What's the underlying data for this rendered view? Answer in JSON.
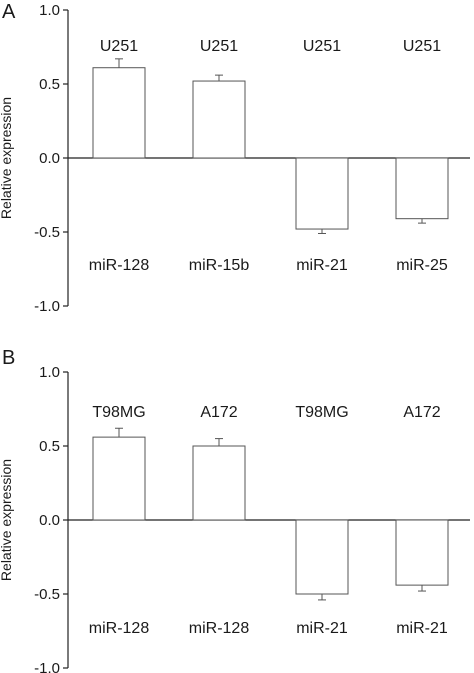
{
  "chart_data": [
    {
      "type": "bar",
      "panel_label": "A",
      "ylabel": "Relative expression",
      "ylim": [
        -1.0,
        1.0
      ],
      "yticks": [
        "1.0",
        "0.5",
        "0.0",
        "-0.5",
        "-1.0"
      ],
      "ytick_values": [
        1.0,
        0.5,
        0.0,
        -0.5,
        -1.0
      ],
      "grid": false,
      "bar_fill": "#ffffff",
      "bar_stroke": "#555555",
      "categories": [
        "miR-128",
        "miR-15b",
        "miR-21",
        "miR-25"
      ],
      "cell_lines": [
        "U251",
        "U251",
        "U251",
        "U251"
      ],
      "values": [
        0.61,
        0.52,
        -0.48,
        -0.41
      ],
      "errors": [
        0.06,
        0.04,
        0.03,
        0.03
      ]
    },
    {
      "type": "bar",
      "panel_label": "B",
      "ylabel": "Relative expression",
      "ylim": [
        -1.0,
        1.0
      ],
      "yticks": [
        "1.0",
        "0.5",
        "0.0",
        "-0.5",
        "-1.0"
      ],
      "ytick_values": [
        1.0,
        0.5,
        0.0,
        -0.5,
        -1.0
      ],
      "grid": false,
      "bar_fill": "#ffffff",
      "bar_stroke": "#555555",
      "categories": [
        "miR-128",
        "miR-128",
        "miR-21",
        "miR-21"
      ],
      "cell_lines": [
        "T98MG",
        "A172",
        "T98MG",
        "A172"
      ],
      "values": [
        0.56,
        0.5,
        -0.5,
        -0.44
      ],
      "errors": [
        0.06,
        0.05,
        0.04,
        0.04
      ]
    }
  ]
}
